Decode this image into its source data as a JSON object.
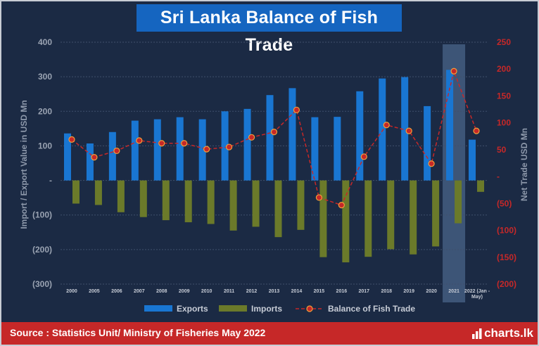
{
  "header": {
    "title": "Sri Lanka Balance of Fish Trade"
  },
  "footer": {
    "source": "Source : Statistics Unit/ Ministry of Fisheries May 2022",
    "logo_text": "charts.lk"
  },
  "colors": {
    "background": "#1b2a44",
    "exports": "#1976d2",
    "imports": "#6b7a2a",
    "balance": "#c62828",
    "highlight": "#7ea7d8",
    "footer": "#c62828",
    "title_box": "#1565c0"
  },
  "chart_data": {
    "type": "bar",
    "title": "Sri Lanka Balance of Fish Trade",
    "categories": [
      "2000",
      "2005",
      "2006",
      "2007",
      "2008",
      "2009",
      "2010",
      "2011",
      "2012",
      "2013",
      "2014",
      "2015",
      "2016",
      "2017",
      "2018",
      "2019",
      "2020",
      "2021",
      "2022 (Jan-May)"
    ],
    "category_labels": [
      [
        "2000"
      ],
      [
        "2005"
      ],
      [
        "2006"
      ],
      [
        "2007"
      ],
      [
        "2008"
      ],
      [
        "2009"
      ],
      [
        "2010"
      ],
      [
        "2011"
      ],
      [
        "2012"
      ],
      [
        "2013"
      ],
      [
        "2014"
      ],
      [
        "2015"
      ],
      [
        "2016"
      ],
      [
        "2017"
      ],
      [
        "2018"
      ],
      [
        "2019"
      ],
      [
        "2020"
      ],
      [
        "2021"
      ],
      [
        "2022 (Jan -",
        "May)"
      ]
    ],
    "series": [
      {
        "name": "Exports",
        "kind": "bar",
        "axis": "left",
        "values": [
          136,
          107,
          140,
          173,
          177,
          183,
          177,
          200,
          207,
          247,
          267,
          183,
          184,
          258,
          295,
          299,
          215,
          320,
          118
        ]
      },
      {
        "name": "Imports",
        "kind": "bar",
        "axis": "left",
        "values": [
          -67,
          -71,
          -92,
          -106,
          -115,
          -121,
          -126,
          -145,
          -134,
          -164,
          -143,
          -222,
          -237,
          -221,
          -199,
          -214,
          -191,
          -124,
          -33
        ]
      },
      {
        "name": "Balance of Fish Trade",
        "kind": "line",
        "axis": "right",
        "values": [
          69,
          36,
          48,
          67,
          62,
          62,
          51,
          55,
          73,
          83,
          124,
          -39,
          -53,
          37,
          96,
          85,
          24,
          196,
          85
        ]
      }
    ],
    "ylabel": "Import / Export Value in USD Mn",
    "ylabel_right": "Net Trade USD Mn",
    "ylim": [
      -300,
      400
    ],
    "ylim_right": [
      -200,
      250
    ],
    "yticks_left": [
      400,
      300,
      200,
      100,
      0,
      -100,
      -200,
      -300
    ],
    "yticks_left_labels": [
      "400",
      "300",
      "200",
      "100",
      "-",
      "(100)",
      "(200)",
      "(300)"
    ],
    "yticks_right": [
      250,
      200,
      150,
      100,
      50,
      0,
      -50,
      -100,
      -150,
      -200
    ],
    "yticks_right_labels": [
      "250",
      "200",
      "150",
      "100",
      "50",
      "-",
      "(50)",
      "(100)",
      "(150)",
      "(200)"
    ],
    "highlight_category": "2021",
    "legend": [
      "Exports",
      "Imports",
      "Balance of Fish Trade"
    ],
    "legend_position": "bottom",
    "grid": true
  }
}
